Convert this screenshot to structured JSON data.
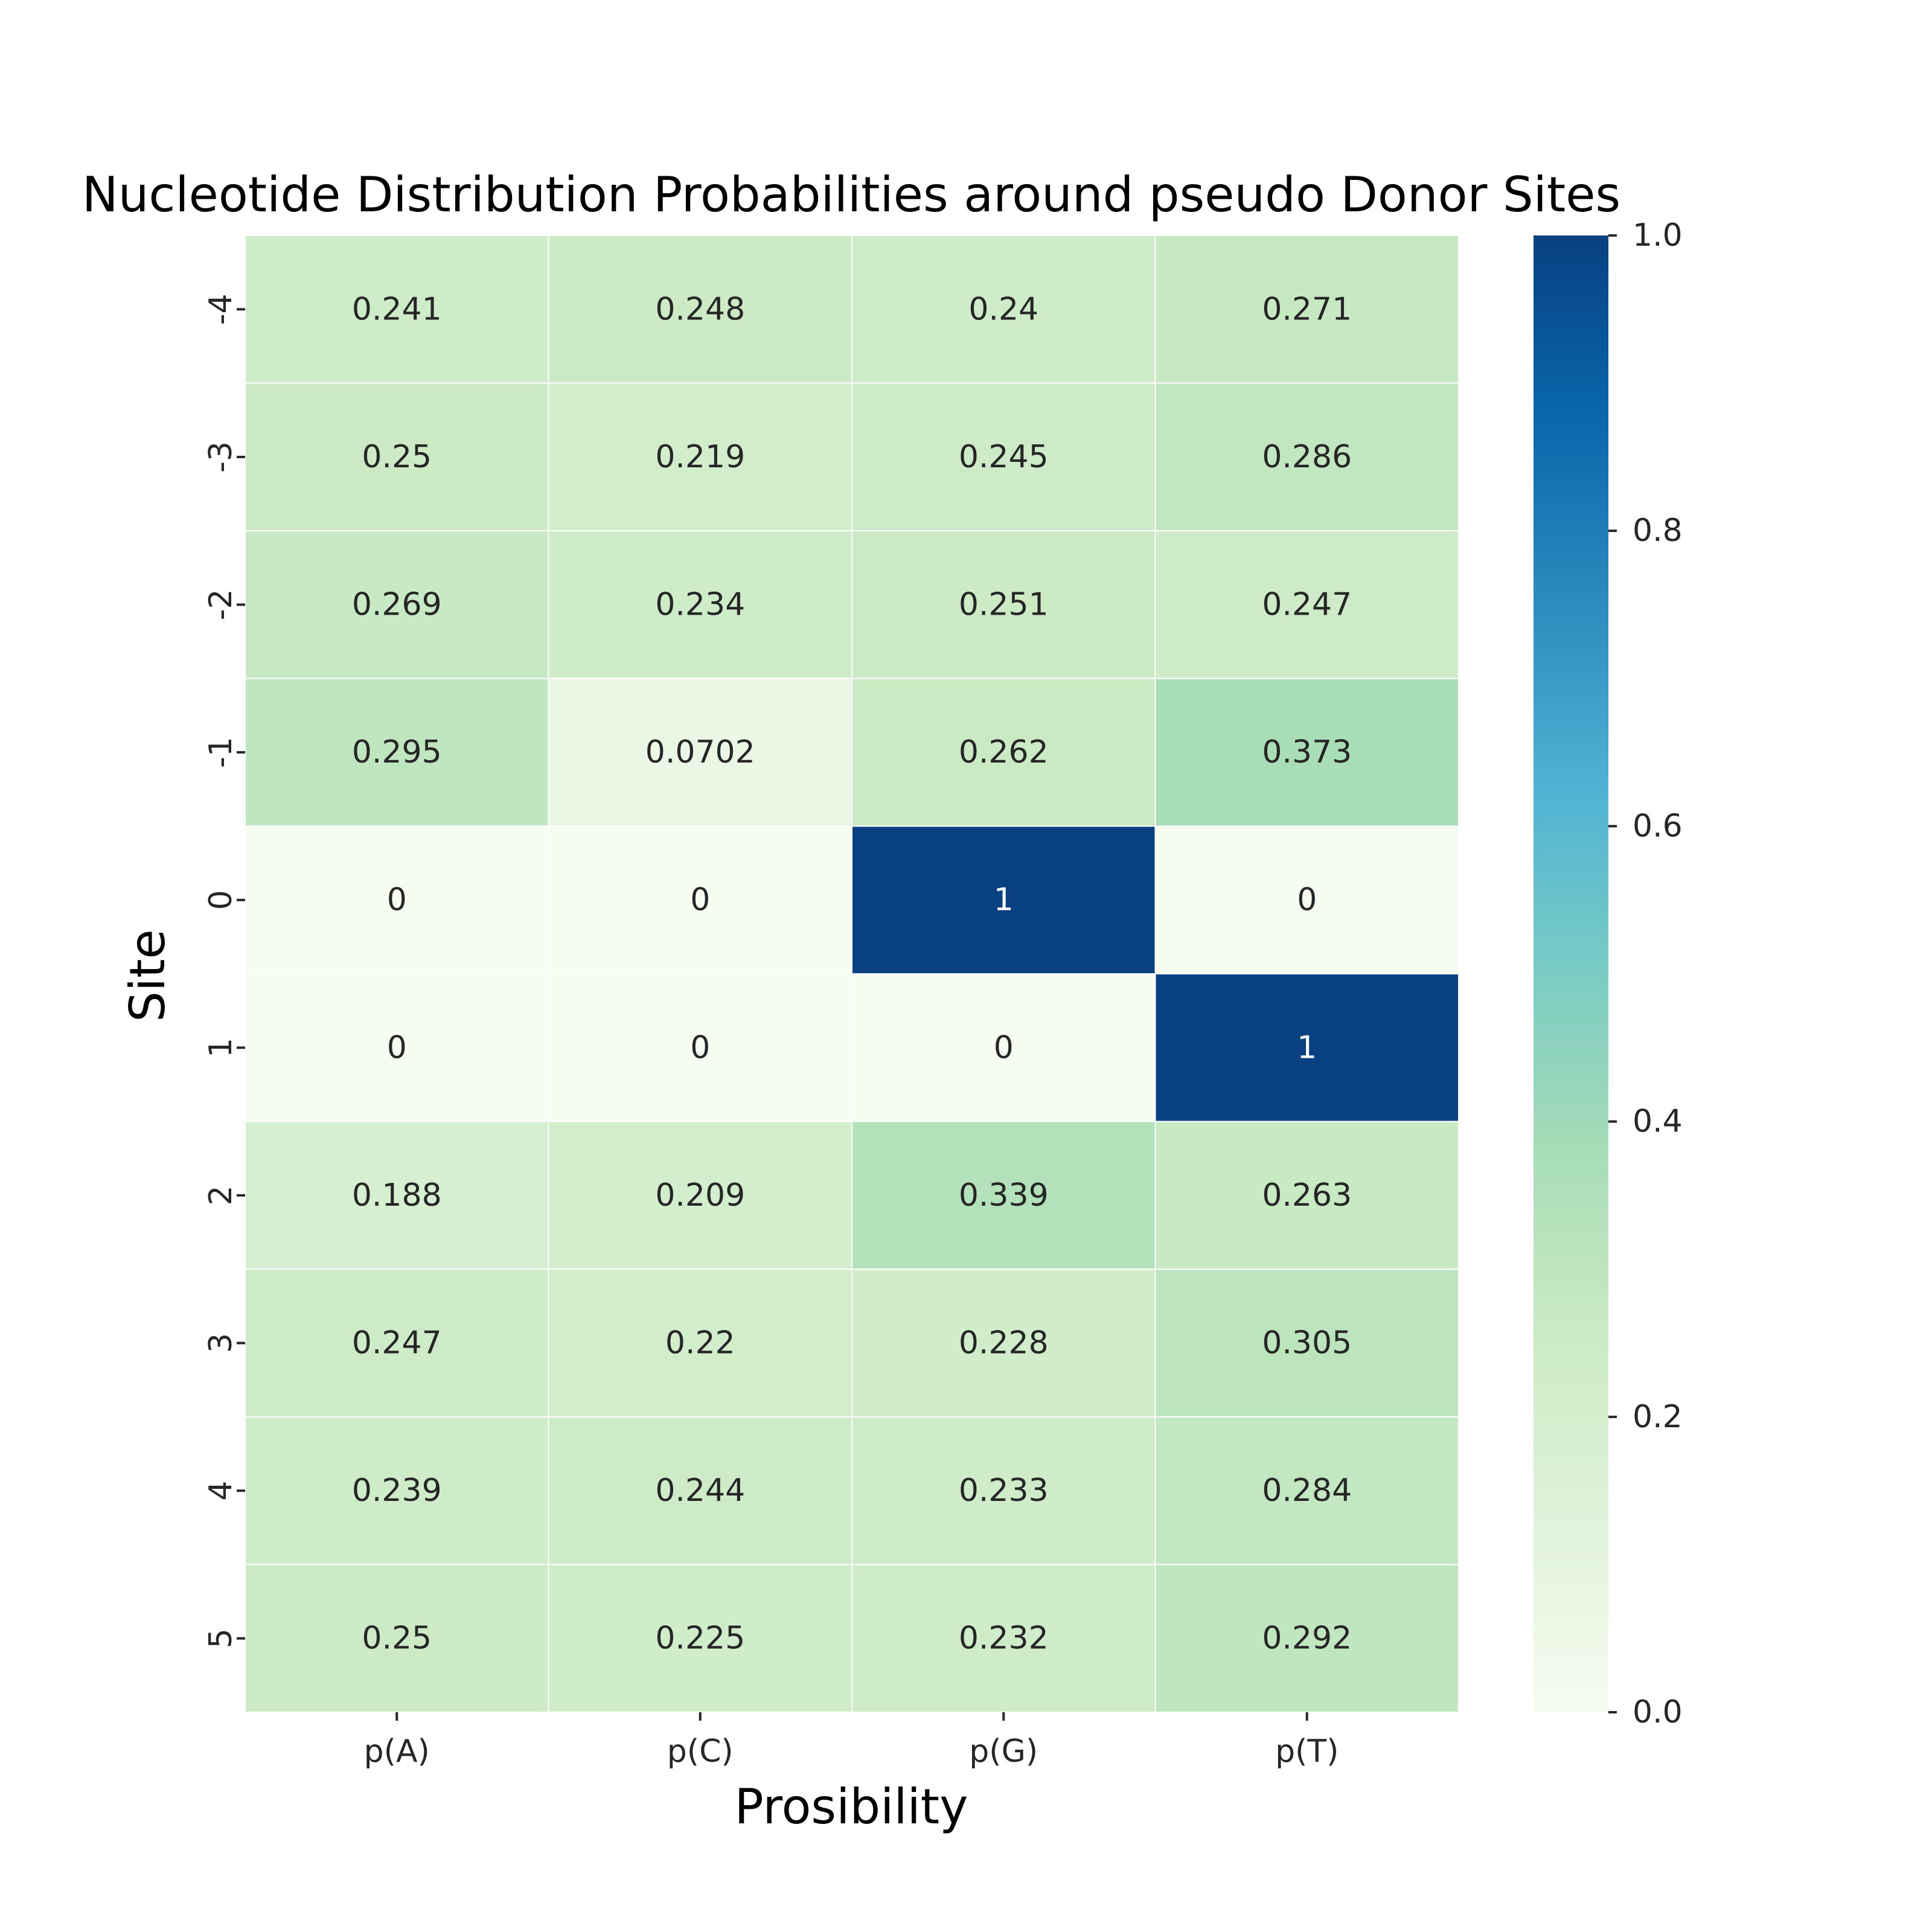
{
  "chart_data": {
    "type": "heatmap",
    "title": "Nucleotide Distribution Probabilities around pseudo Donor Sites",
    "xlabel": "Prosibility",
    "ylabel": "Site",
    "x_categories": [
      "p(A)",
      "p(C)",
      "p(G)",
      "p(T)"
    ],
    "y_categories": [
      "-4",
      "-3",
      "-2",
      "-1",
      "0",
      "1",
      "2",
      "3",
      "4",
      "5"
    ],
    "values": [
      [
        0.241,
        0.248,
        0.24,
        0.271
      ],
      [
        0.25,
        0.219,
        0.245,
        0.286
      ],
      [
        0.269,
        0.234,
        0.251,
        0.247
      ],
      [
        0.295,
        0.0702,
        0.262,
        0.373
      ],
      [
        0,
        0,
        1,
        0
      ],
      [
        0,
        0,
        0,
        1
      ],
      [
        0.188,
        0.209,
        0.339,
        0.263
      ],
      [
        0.247,
        0.22,
        0.228,
        0.305
      ],
      [
        0.239,
        0.244,
        0.233,
        0.284
      ],
      [
        0.25,
        0.225,
        0.232,
        0.292
      ]
    ],
    "cell_labels": [
      [
        "0.241",
        "0.248",
        "0.24",
        "0.271"
      ],
      [
        "0.25",
        "0.219",
        "0.245",
        "0.286"
      ],
      [
        "0.269",
        "0.234",
        "0.251",
        "0.247"
      ],
      [
        "0.295",
        "0.0702",
        "0.262",
        "0.373"
      ],
      [
        "0",
        "0",
        "1",
        "0"
      ],
      [
        "0",
        "0",
        "0",
        "1"
      ],
      [
        "0.188",
        "0.209",
        "0.339",
        "0.263"
      ],
      [
        "0.247",
        "0.22",
        "0.228",
        "0.305"
      ],
      [
        "0.239",
        "0.244",
        "0.233",
        "0.284"
      ],
      [
        "0.25",
        "0.225",
        "0.232",
        "0.292"
      ]
    ],
    "colorbar": {
      "range": [
        0.0,
        1.0
      ],
      "ticks": [
        "0.0",
        "0.2",
        "0.4",
        "0.6",
        "0.8",
        "1.0"
      ],
      "colormap": "GnBu",
      "colors": [
        "#f7fcf0",
        "#e0f3db",
        "#ccebc5",
        "#a8ddb5",
        "#7bccc4",
        "#4eb3d3",
        "#2b8cbe",
        "#0868ac",
        "#084081"
      ]
    },
    "legend": "colorbar-right",
    "grid": false
  }
}
